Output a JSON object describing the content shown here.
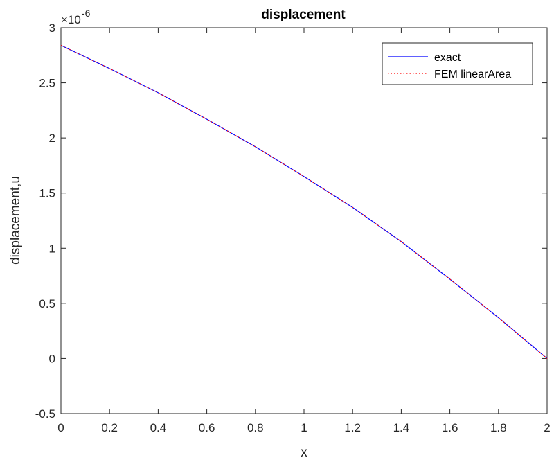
{
  "chart_data": {
    "type": "line",
    "title": "displacement",
    "xlabel": "x",
    "ylabel": "displacement,u",
    "xlim": [
      0,
      2
    ],
    "ylim": [
      -0.5,
      3
    ],
    "y_multiplier_label": "×10",
    "y_multiplier_exponent": "-6",
    "xticks": [
      0,
      0.2,
      0.4,
      0.6,
      0.8,
      1,
      1.2,
      1.4,
      1.6,
      1.8,
      2
    ],
    "xtick_labels": [
      "0",
      "0.2",
      "0.4",
      "0.6",
      "0.8",
      "1",
      "1.2",
      "1.4",
      "1.6",
      "1.8",
      "2"
    ],
    "yticks": [
      -0.5,
      0,
      0.5,
      1,
      1.5,
      2,
      2.5,
      3
    ],
    "ytick_labels": [
      "-0.5",
      "0",
      "0.5",
      "1",
      "1.5",
      "2",
      "2.5",
      "3"
    ],
    "grid": false,
    "legend_position": "top-right",
    "series": [
      {
        "name": "exact",
        "color": "#0000ff",
        "style": "solid",
        "x": [
          0,
          0.2,
          0.4,
          0.6,
          0.8,
          1.0,
          1.2,
          1.4,
          1.6,
          1.8,
          2.0
        ],
        "y": [
          2.84,
          2.63,
          2.41,
          2.17,
          1.92,
          1.65,
          1.37,
          1.06,
          0.72,
          0.37,
          0.0
        ]
      },
      {
        "name": "FEM linearArea",
        "color": "#ff0000",
        "style": "dotted",
        "x": [
          0,
          0.2,
          0.4,
          0.6,
          0.8,
          1.0,
          1.2,
          1.4,
          1.6,
          1.8,
          2.0
        ],
        "y": [
          2.84,
          2.63,
          2.41,
          2.17,
          1.92,
          1.65,
          1.37,
          1.06,
          0.72,
          0.37,
          0.0
        ]
      }
    ]
  }
}
